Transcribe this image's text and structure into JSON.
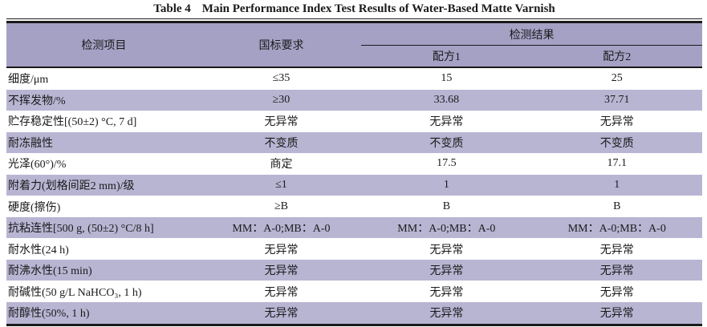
{
  "caption": {
    "label": "Table 4",
    "title": "Main Performance Index Test Results of Water-Based Matte Varnish"
  },
  "table": {
    "header": {
      "item": "检测项目",
      "standard": "国标要求",
      "results": "检测结果",
      "formula1": "配方1",
      "formula2": "配方2"
    },
    "rows": [
      {
        "item": "细度/μm",
        "standard": "≤35",
        "f1": "15",
        "f2": "25"
      },
      {
        "item": "不挥发物/%",
        "standard": "≥30",
        "f1": "33.68",
        "f2": "37.71"
      },
      {
        "item": "贮存稳定性[(50±2) °C, 7 d]",
        "standard": "无异常",
        "f1": "无异常",
        "f2": "无异常"
      },
      {
        "item": "耐冻融性",
        "standard": "不变质",
        "f1": "不变质",
        "f2": "不变质"
      },
      {
        "item": "光泽(60°)/%",
        "standard": "商定",
        "f1": "17.5",
        "f2": "17.1"
      },
      {
        "item": "附着力(划格间距2 mm)/级",
        "standard": "≤1",
        "f1": "1",
        "f2": "1"
      },
      {
        "item": "硬度(擦伤)",
        "standard": "≥B",
        "f1": "B",
        "f2": "B"
      },
      {
        "item": "抗粘连性[500 g, (50±2) °C/8 h]",
        "standard": "MM：A-0;MB：A-0",
        "f1": "MM：A-0;MB：A-0",
        "f2": "MM：A-0;MB：A-0"
      },
      {
        "item": "耐水性(24 h)",
        "standard": "无异常",
        "f1": "无异常",
        "f2": "无异常"
      },
      {
        "item": "耐沸水性(15 min)",
        "standard": "无异常",
        "f1": "无异常",
        "f2": "无异常"
      },
      {
        "item": "耐碱性(50 g/L NaHCO₃, 1 h)",
        "standard": "无异常",
        "f1": "无异常",
        "f2": "无异常"
      },
      {
        "item": "耐醇性(50%, 1 h)",
        "standard": "无异常",
        "f1": "无异常",
        "f2": "无异常"
      }
    ]
  },
  "colors": {
    "header_bg": "#a5a1c5",
    "stripe_bg": "#b8b5d3",
    "row_bg": "#ffffff",
    "border": "#1a1a1a",
    "text": "#1a1a1a"
  }
}
